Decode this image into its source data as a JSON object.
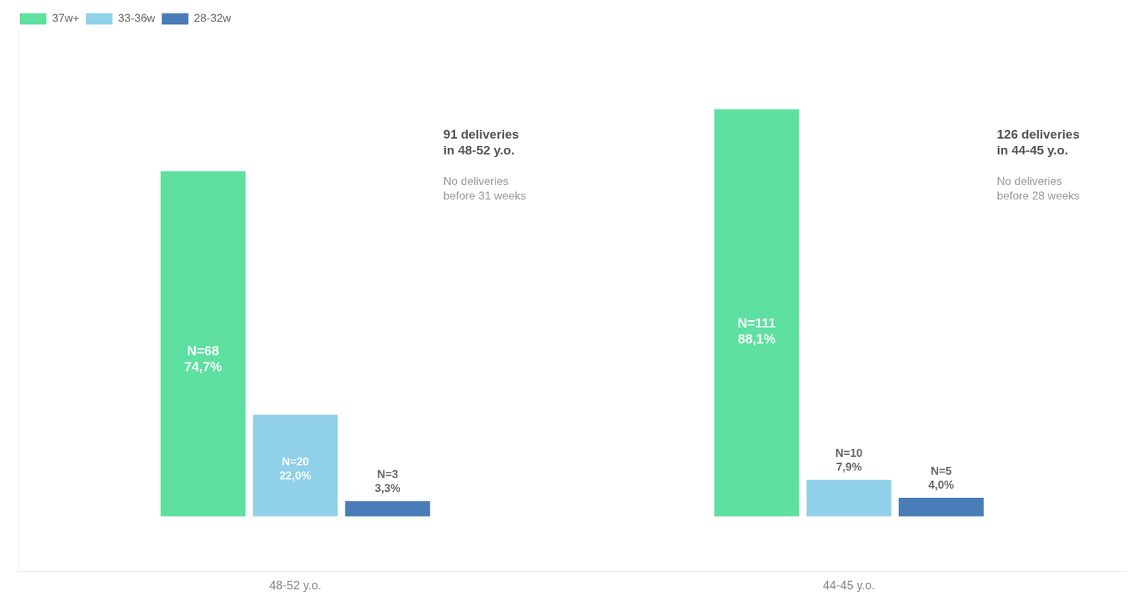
{
  "chart_data": {
    "type": "bar",
    "categories": [
      "48-52 y.o.",
      "44-45 y.o."
    ],
    "series": [
      {
        "name": "37w+",
        "color": "#5de0a0",
        "values": [
          74.7,
          88.1
        ],
        "value_labels": [
          "N=68\n74,7%",
          "N=111\n88,1%"
        ]
      },
      {
        "name": "33-36w",
        "color": "#90d0e8",
        "values": [
          22.0,
          7.9
        ],
        "value_labels": [
          "N=20\n22,0%",
          "N=10\n7,9%"
        ]
      },
      {
        "name": "28-32w",
        "color": "#4a7db8",
        "values": [
          3.3,
          4.0
        ],
        "value_labels": [
          "N=3\n3,3%",
          "N=5\n4,0%"
        ]
      }
    ],
    "annotations": [
      [
        "91 deliveries\nin 48-52 y.o.",
        "No deliveries\nbefore 31 weeks"
      ],
      [
        "126 deliveries\nin 44-45 y.o.",
        "No deliveries\nbefore 28 weeks"
      ]
    ],
    "ylim": [
      -12,
      105
    ],
    "grid": false,
    "legend": "upper left",
    "data_labels": true,
    "tick_labels": "x"
  }
}
